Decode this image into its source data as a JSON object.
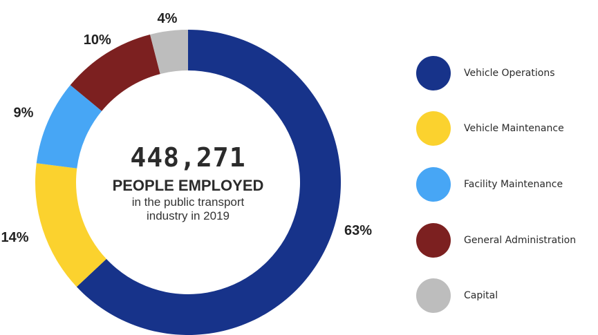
{
  "chart_data": {
    "type": "pie",
    "donut": true,
    "categories": [
      "Vehicle Operations",
      "Vehicle Maintenance",
      "Facility Maintenance",
      "General Administration",
      "Capital"
    ],
    "values": [
      63,
      14,
      9,
      10,
      4
    ],
    "value_labels": [
      "63%",
      "14%",
      "9%",
      "10%",
      "4%"
    ],
    "colors": [
      "#17338a",
      "#fbd22e",
      "#47a6f5",
      "#7c2020",
      "#bdbdbd"
    ],
    "slice_order_clockwise_from_top": [
      "Vehicle Operations",
      "Vehicle Maintenance",
      "Facility Maintenance",
      "General Administration",
      "Capital"
    ],
    "legend_position": "right",
    "center_text": {
      "number": "448,271",
      "headline": "PEOPLE EMPLOYED",
      "sub_line1": "in the public transport",
      "sub_line2": "industry in 2019"
    }
  }
}
